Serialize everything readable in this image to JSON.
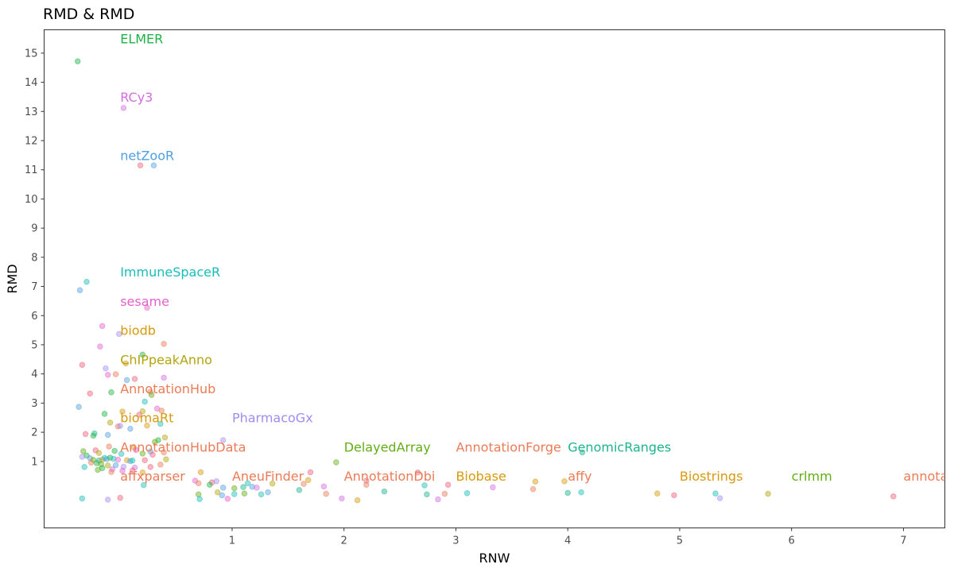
{
  "chart_data": {
    "type": "scatter",
    "title": "RMD & RMD",
    "xlabel": "RNW",
    "ylabel": "RMD",
    "xlim": [
      -0.68,
      7.37
    ],
    "ylim": [
      -1.28,
      15.8
    ],
    "x_ticks": [
      1,
      2,
      3,
      4,
      5,
      6,
      7
    ],
    "y_ticks": [
      1,
      2,
      3,
      4,
      5,
      6,
      7,
      8,
      9,
      10,
      11,
      12,
      13,
      14,
      15
    ],
    "grid": false,
    "legend": "none",
    "point_opacity": 0.45,
    "labels": [
      {
        "text": "ELMER",
        "x": 0.0,
        "y": 15.5,
        "color": "#1fb346"
      },
      {
        "text": "RCy3",
        "x": 0.0,
        "y": 13.5,
        "color": "#d26ce0"
      },
      {
        "text": "netZooR",
        "x": 0.0,
        "y": 11.5,
        "color": "#4f9fe0"
      },
      {
        "text": "ImmuneSpaceR",
        "x": 0.0,
        "y": 7.5,
        "color": "#19bdb8"
      },
      {
        "text": "sesame",
        "x": 0.0,
        "y": 6.5,
        "color": "#e55fcb"
      },
      {
        "text": "biodb",
        "x": 0.0,
        "y": 5.5,
        "color": "#d89a0b"
      },
      {
        "text": "ChIPpeakAnno",
        "x": 0.0,
        "y": 4.5,
        "color": "#b3a40c"
      },
      {
        "text": "AnnotationHub",
        "x": 0.0,
        "y": 3.5,
        "color": "#ec7b56"
      },
      {
        "text": "biomaRt",
        "x": 0.0,
        "y": 2.5,
        "color": "#d89a0b"
      },
      {
        "text": "PharmacoGx",
        "x": 1.0,
        "y": 2.5,
        "color": "#a38bf2"
      },
      {
        "text": "AnnotationHubData",
        "x": 0.0,
        "y": 1.5,
        "color": "#ec7b56"
      },
      {
        "text": "DelayedArray",
        "x": 2.0,
        "y": 1.5,
        "color": "#62ae14"
      },
      {
        "text": "AnnotationForge",
        "x": 3.0,
        "y": 1.5,
        "color": "#ec7b56"
      },
      {
        "text": "GenomicRanges",
        "x": 4.0,
        "y": 1.5,
        "color": "#1bb48f"
      },
      {
        "text": "affxparser",
        "x": 0.0,
        "y": 0.5,
        "color": "#ec7b56"
      },
      {
        "text": "AneuFinder",
        "x": 1.0,
        "y": 0.5,
        "color": "#ec7b56"
      },
      {
        "text": "AnnotationDbi",
        "x": 2.0,
        "y": 0.5,
        "color": "#ec7b56"
      },
      {
        "text": "Biobase",
        "x": 3.0,
        "y": 0.5,
        "color": "#d89a0b"
      },
      {
        "text": "affy",
        "x": 4.0,
        "y": 0.5,
        "color": "#ec7b56"
      },
      {
        "text": "Biostrings",
        "x": 5.0,
        "y": 0.5,
        "color": "#d89a0b"
      },
      {
        "text": "crlmm",
        "x": 6.0,
        "y": 0.5,
        "color": "#62ae14"
      },
      {
        "text": "annota",
        "x": 7.0,
        "y": 0.5,
        "color": "#ec7b56"
      }
    ],
    "points": [
      {
        "x": -0.38,
        "y": 14.72,
        "color": "#1fb346"
      },
      {
        "x": 0.03,
        "y": 13.12,
        "color": "#d26ce0"
      },
      {
        "x": 0.18,
        "y": 11.15,
        "color": "#ee5f7a"
      },
      {
        "x": 0.3,
        "y": 11.15,
        "color": "#4f9fe0"
      },
      {
        "x": -0.3,
        "y": 7.16,
        "color": "#19bdb8"
      },
      {
        "x": -0.36,
        "y": 6.87,
        "color": "#4f9fe0"
      },
      {
        "x": 0.24,
        "y": 6.27,
        "color": "#e55fcb"
      },
      {
        "x": -0.16,
        "y": 5.64,
        "color": "#e55fcb"
      },
      {
        "x": -0.01,
        "y": 5.37,
        "color": "#a38bf2"
      },
      {
        "x": 0.39,
        "y": 5.03,
        "color": "#ec7b56"
      },
      {
        "x": -0.18,
        "y": 4.94,
        "color": "#e55fcb"
      },
      {
        "x": 0.2,
        "y": 4.66,
        "color": "#1fb346"
      },
      {
        "x": 0.05,
        "y": 4.36,
        "color": "#d89a0b"
      },
      {
        "x": -0.34,
        "y": 4.31,
        "color": "#ee5f7a"
      },
      {
        "x": -0.13,
        "y": 4.19,
        "color": "#a38bf2"
      },
      {
        "x": -0.11,
        "y": 3.97,
        "color": "#e55fcb"
      },
      {
        "x": -0.04,
        "y": 3.99,
        "color": "#ec7b56"
      },
      {
        "x": 0.39,
        "y": 3.87,
        "color": "#d26ce0"
      },
      {
        "x": 0.06,
        "y": 3.79,
        "color": "#4f9fe0"
      },
      {
        "x": 0.13,
        "y": 3.83,
        "color": "#ee5f7a"
      },
      {
        "x": -0.27,
        "y": 3.33,
        "color": "#ee5f7a"
      },
      {
        "x": -0.08,
        "y": 3.37,
        "color": "#1fb346"
      },
      {
        "x": 0.27,
        "y": 3.39,
        "color": "#ec7b56"
      },
      {
        "x": 0.28,
        "y": 3.28,
        "color": "#62ae14"
      },
      {
        "x": 0.22,
        "y": 3.05,
        "color": "#19bdb8"
      },
      {
        "x": -0.37,
        "y": 2.87,
        "color": "#4f9fe0"
      },
      {
        "x": 0.33,
        "y": 2.81,
        "color": "#e55fcb"
      },
      {
        "x": 0.37,
        "y": 2.74,
        "color": "#ec7b56"
      },
      {
        "x": -0.14,
        "y": 2.63,
        "color": "#1fb346"
      },
      {
        "x": 0.02,
        "y": 2.71,
        "color": "#d89a0b"
      },
      {
        "x": 0.2,
        "y": 2.72,
        "color": "#b3a40c"
      },
      {
        "x": 0.17,
        "y": 2.6,
        "color": "#ee5f7a"
      },
      {
        "x": -0.09,
        "y": 2.33,
        "color": "#b3a40c"
      },
      {
        "x": 0.36,
        "y": 2.29,
        "color": "#19bdb8"
      },
      {
        "x": 0.24,
        "y": 2.23,
        "color": "#d89a0b"
      },
      {
        "x": -0.02,
        "y": 2.2,
        "color": "#ec7b56"
      },
      {
        "x": 0.0,
        "y": 2.22,
        "color": "#a38bf2"
      },
      {
        "x": 0.09,
        "y": 2.12,
        "color": "#4f9fe0"
      },
      {
        "x": -0.31,
        "y": 1.94,
        "color": "#ee5f7a"
      },
      {
        "x": -0.23,
        "y": 1.96,
        "color": "#1bb48f"
      },
      {
        "x": -0.24,
        "y": 1.88,
        "color": "#1fb346"
      },
      {
        "x": -0.11,
        "y": 1.91,
        "color": "#4f9fe0"
      },
      {
        "x": 0.4,
        "y": 1.82,
        "color": "#b3a40c"
      },
      {
        "x": 0.34,
        "y": 1.73,
        "color": "#1fb346"
      },
      {
        "x": 0.31,
        "y": 1.67,
        "color": "#62ae14"
      },
      {
        "x": 0.92,
        "y": 1.73,
        "color": "#a38bf2"
      },
      {
        "x": -0.1,
        "y": 1.51,
        "color": "#ec7b56"
      },
      {
        "x": 0.12,
        "y": 1.49,
        "color": "#d89a0b"
      },
      {
        "x": -0.33,
        "y": 1.35,
        "color": "#62ae14"
      },
      {
        "x": -0.22,
        "y": 1.38,
        "color": "#ee5f7a"
      },
      {
        "x": -0.05,
        "y": 1.36,
        "color": "#1fb346"
      },
      {
        "x": 0.14,
        "y": 1.39,
        "color": "#e55fcb"
      },
      {
        "x": 0.27,
        "y": 1.34,
        "color": "#4f9fe0"
      },
      {
        "x": -0.19,
        "y": 1.29,
        "color": "#b3a40c"
      },
      {
        "x": 0.01,
        "y": 1.26,
        "color": "#19bdb8"
      },
      {
        "x": 0.2,
        "y": 1.27,
        "color": "#62ae14"
      },
      {
        "x": 0.29,
        "y": 1.23,
        "color": "#ee5f7a"
      },
      {
        "x": 0.39,
        "y": 1.31,
        "color": "#ec7b56"
      },
      {
        "x": -0.3,
        "y": 1.2,
        "color": "#1fb346"
      },
      {
        "x": -0.34,
        "y": 1.16,
        "color": "#a38bf2"
      },
      {
        "x": -0.27,
        "y": 1.11,
        "color": "#4f9fe0"
      },
      {
        "x": -0.24,
        "y": 1.05,
        "color": "#62ae14"
      },
      {
        "x": -0.19,
        "y": 1.03,
        "color": "#1bb48f"
      },
      {
        "x": -0.16,
        "y": 1.06,
        "color": "#d89a0b"
      },
      {
        "x": -0.14,
        "y": 1.12,
        "color": "#19bdb8"
      },
      {
        "x": -0.12,
        "y": 1.08,
        "color": "#4f9fe0"
      },
      {
        "x": -0.09,
        "y": 1.13,
        "color": "#1fb346"
      },
      {
        "x": -0.06,
        "y": 1.09,
        "color": "#19bdb8"
      },
      {
        "x": -0.02,
        "y": 1.06,
        "color": "#e55fcb"
      },
      {
        "x": 0.06,
        "y": 1.04,
        "color": "#d89a0b"
      },
      {
        "x": 0.09,
        "y": 1.01,
        "color": "#4f9fe0"
      },
      {
        "x": 0.11,
        "y": 1.03,
        "color": "#19bdb8"
      },
      {
        "x": 0.22,
        "y": 1.04,
        "color": "#ee5f7a"
      },
      {
        "x": -0.26,
        "y": 0.96,
        "color": "#ec7b56"
      },
      {
        "x": -0.21,
        "y": 0.94,
        "color": "#1fb346"
      },
      {
        "x": -0.17,
        "y": 0.9,
        "color": "#62ae14"
      },
      {
        "x": -0.32,
        "y": 0.81,
        "color": "#19bdb8"
      },
      {
        "x": -0.11,
        "y": 0.86,
        "color": "#b3a40c"
      },
      {
        "x": -0.04,
        "y": 0.87,
        "color": "#4f9fe0"
      },
      {
        "x": 0.03,
        "y": 0.82,
        "color": "#a38bf2"
      },
      {
        "x": 0.13,
        "y": 0.79,
        "color": "#d26ce0"
      },
      {
        "x": 0.27,
        "y": 0.81,
        "color": "#ee5f7a"
      },
      {
        "x": 0.36,
        "y": 0.89,
        "color": "#ec7b56"
      },
      {
        "x": 0.41,
        "y": 1.07,
        "color": "#b3a40c"
      },
      {
        "x": -0.2,
        "y": 0.71,
        "color": "#62ae14"
      },
      {
        "x": -0.16,
        "y": 0.77,
        "color": "#1fb346"
      },
      {
        "x": -0.07,
        "y": 0.73,
        "color": "#d26ce0"
      },
      {
        "x": 0.02,
        "y": 0.68,
        "color": "#e55fcb"
      },
      {
        "x": 0.11,
        "y": 0.69,
        "color": "#ee5f7a"
      },
      {
        "x": -0.08,
        "y": 0.64,
        "color": "#ec7b56"
      },
      {
        "x": 0.2,
        "y": 0.62,
        "color": "#d89a0b"
      },
      {
        "x": 0.67,
        "y": 0.34,
        "color": "#e55fcb"
      },
      {
        "x": 0.82,
        "y": 0.28,
        "color": "#ee5f7a"
      },
      {
        "x": 0.86,
        "y": 0.32,
        "color": "#a38bf2"
      },
      {
        "x": 0.21,
        "y": 0.19,
        "color": "#19bdb8"
      },
      {
        "x": 0.72,
        "y": 0.63,
        "color": "#d89a0b"
      },
      {
        "x": 0.7,
        "y": 0.25,
        "color": "#ec7b56"
      },
      {
        "x": 0.8,
        "y": 0.2,
        "color": "#1fb346"
      },
      {
        "x": 0.92,
        "y": 0.1,
        "color": "#4f9fe0"
      },
      {
        "x": 1.02,
        "y": 0.08,
        "color": "#62ae14"
      },
      {
        "x": 1.1,
        "y": 0.12,
        "color": "#1bb48f"
      },
      {
        "x": 1.14,
        "y": 0.25,
        "color": "#19bdb8"
      },
      {
        "x": 1.18,
        "y": 0.13,
        "color": "#4f9fe0"
      },
      {
        "x": 1.22,
        "y": 0.1,
        "color": "#d26ce0"
      },
      {
        "x": 1.36,
        "y": 0.24,
        "color": "#b3a40c"
      },
      {
        "x": 1.7,
        "y": 0.63,
        "color": "#ee5f7a"
      },
      {
        "x": 1.68,
        "y": 0.36,
        "color": "#d89a0b"
      },
      {
        "x": 1.64,
        "y": 0.23,
        "color": "#ec7b56"
      },
      {
        "x": 1.82,
        "y": 0.14,
        "color": "#d26ce0"
      },
      {
        "x": 1.93,
        "y": 0.97,
        "color": "#62ae14"
      },
      {
        "x": 2.2,
        "y": 0.34,
        "color": "#ee5f7a"
      },
      {
        "x": 2.2,
        "y": 0.2,
        "color": "#ec7b56"
      },
      {
        "x": 2.66,
        "y": 0.62,
        "color": "#ee5f7a"
      },
      {
        "x": 2.72,
        "y": 0.18,
        "color": "#19bdb8"
      },
      {
        "x": 2.93,
        "y": 0.2,
        "color": "#ee5f7a"
      },
      {
        "x": 3.33,
        "y": 0.11,
        "color": "#d26ce0"
      },
      {
        "x": 3.71,
        "y": 0.31,
        "color": "#d89a0b"
      },
      {
        "x": 3.69,
        "y": 0.05,
        "color": "#ec7b56"
      },
      {
        "x": 3.97,
        "y": 0.32,
        "color": "#d89a0b"
      },
      {
        "x": 4.13,
        "y": 1.31,
        "color": "#1bb48f"
      },
      {
        "x": 0.7,
        "y": -0.13,
        "color": "#62ae14"
      },
      {
        "x": 0.87,
        "y": -0.06,
        "color": "#b3a40c"
      },
      {
        "x": 0.91,
        "y": -0.16,
        "color": "#4f9fe0"
      },
      {
        "x": 1.02,
        "y": -0.12,
        "color": "#19bdb8"
      },
      {
        "x": 1.11,
        "y": -0.1,
        "color": "#62ae14"
      },
      {
        "x": 1.26,
        "y": -0.13,
        "color": "#19bdb8"
      },
      {
        "x": 1.32,
        "y": -0.06,
        "color": "#4f9fe0"
      },
      {
        "x": 1.6,
        "y": 0.02,
        "color": "#1bb48f"
      },
      {
        "x": 1.84,
        "y": -0.11,
        "color": "#ec7b56"
      },
      {
        "x": 1.98,
        "y": -0.27,
        "color": "#d26ce0"
      },
      {
        "x": 2.12,
        "y": -0.33,
        "color": "#d89a0b"
      },
      {
        "x": 2.36,
        "y": -0.03,
        "color": "#1bb48f"
      },
      {
        "x": 2.74,
        "y": -0.13,
        "color": "#1bb48f"
      },
      {
        "x": 2.84,
        "y": -0.3,
        "color": "#d26ce0"
      },
      {
        "x": 2.9,
        "y": -0.11,
        "color": "#ec7b56"
      },
      {
        "x": 3.1,
        "y": -0.09,
        "color": "#19bdb8"
      },
      {
        "x": 4.0,
        "y": -0.08,
        "color": "#1bb48f"
      },
      {
        "x": 4.12,
        "y": -0.06,
        "color": "#19bdb8"
      },
      {
        "x": 4.8,
        "y": -0.1,
        "color": "#d89a0b"
      },
      {
        "x": 4.95,
        "y": -0.16,
        "color": "#ee5f7a"
      },
      {
        "x": 5.32,
        "y": -0.1,
        "color": "#19bdb8"
      },
      {
        "x": 5.36,
        "y": -0.26,
        "color": "#a38bf2"
      },
      {
        "x": 5.79,
        "y": -0.11,
        "color": "#b3a40c"
      },
      {
        "x": 6.91,
        "y": -0.2,
        "color": "#ee5f7a"
      },
      {
        "x": -0.34,
        "y": -0.27,
        "color": "#19bdb8"
      },
      {
        "x": -0.11,
        "y": -0.31,
        "color": "#a38bf2"
      },
      {
        "x": 0.71,
        "y": -0.29,
        "color": "#19bdb8"
      },
      {
        "x": 0.96,
        "y": -0.28,
        "color": "#e55fcb"
      },
      {
        "x": 0.0,
        "y": -0.25,
        "color": "#ee5f7a"
      }
    ]
  }
}
